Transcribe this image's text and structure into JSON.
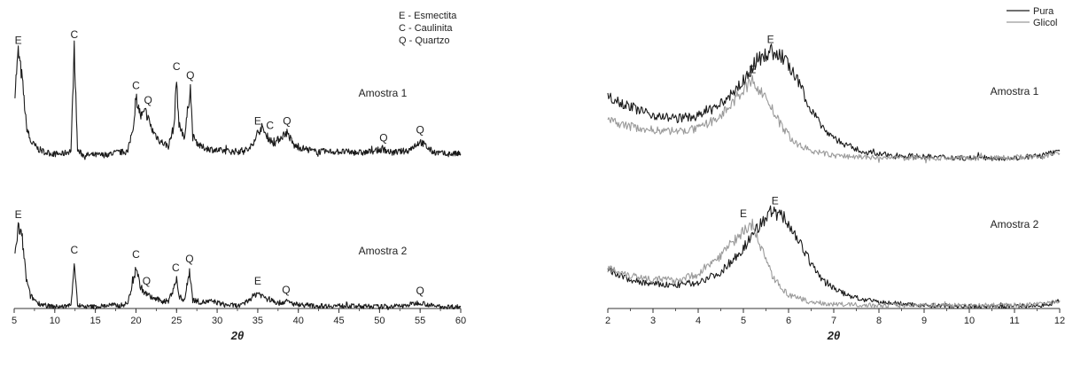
{
  "chart_data": [
    {
      "type": "line",
      "xlabel": "2θ",
      "xlim": [
        5,
        60
      ],
      "xticks": [
        "5",
        "10",
        "15",
        "20",
        "25",
        "30",
        "35",
        "40",
        "45",
        "50",
        "55",
        "60"
      ],
      "legend_notes": [
        "E - Esmectita",
        "C - Caulinita",
        "Q - Quartzo"
      ],
      "series": [
        {
          "name": "Amostra 1",
          "points": [
            [
              5.1,
              0.6
            ],
            [
              5.5,
              0.95
            ],
            [
              6.0,
              0.7
            ],
            [
              6.5,
              0.3
            ],
            [
              7.0,
              0.16
            ],
            [
              8.0,
              0.09
            ],
            [
              9.0,
              0.06
            ],
            [
              10.0,
              0.05
            ],
            [
              11.0,
              0.05
            ],
            [
              12.0,
              0.08
            ],
            [
              12.4,
              1.0
            ],
            [
              12.8,
              0.08
            ],
            [
              13.5,
              0.04
            ],
            [
              15.0,
              0.04
            ],
            [
              16.0,
              0.04
            ],
            [
              17.5,
              0.06
            ],
            [
              19.0,
              0.07
            ],
            [
              19.8,
              0.35
            ],
            [
              20.0,
              0.55
            ],
            [
              20.6,
              0.38
            ],
            [
              21.2,
              0.42
            ],
            [
              22.0,
              0.26
            ],
            [
              23.0,
              0.16
            ],
            [
              24.0,
              0.12
            ],
            [
              24.7,
              0.3
            ],
            [
              25.0,
              0.72
            ],
            [
              25.3,
              0.3
            ],
            [
              26.0,
              0.2
            ],
            [
              26.7,
              0.64
            ],
            [
              27.0,
              0.2
            ],
            [
              28.0,
              0.11
            ],
            [
              30.0,
              0.08
            ],
            [
              32.0,
              0.07
            ],
            [
              34.0,
              0.09
            ],
            [
              35.0,
              0.24
            ],
            [
              35.5,
              0.28
            ],
            [
              36.2,
              0.2
            ],
            [
              37.0,
              0.14
            ],
            [
              38.2,
              0.22
            ],
            [
              38.6,
              0.24
            ],
            [
              39.5,
              0.12
            ],
            [
              42.0,
              0.07
            ],
            [
              45.0,
              0.07
            ],
            [
              48.0,
              0.06
            ],
            [
              50.5,
              0.09
            ],
            [
              51.5,
              0.06
            ],
            [
              53.5,
              0.08
            ],
            [
              55.0,
              0.16
            ],
            [
              56.5,
              0.07
            ],
            [
              58.0,
              0.05
            ],
            [
              60.0,
              0.05
            ]
          ],
          "peak_labels": [
            {
              "text": "E",
              "x": 5.5
            },
            {
              "text": "C",
              "x": 12.4
            },
            {
              "text": "C",
              "x": 20.0
            },
            {
              "text": "Q",
              "x": 21.5
            },
            {
              "text": "C",
              "x": 25.0
            },
            {
              "text": "Q",
              "x": 26.7
            },
            {
              "text": "E",
              "x": 35.0
            },
            {
              "text": "C",
              "x": 36.5
            },
            {
              "text": "Q",
              "x": 38.6
            },
            {
              "text": "Q",
              "x": 50.5
            },
            {
              "text": "Q",
              "x": 55.0
            }
          ]
        },
        {
          "name": "Amostra 2",
          "points": [
            [
              5.1,
              0.6
            ],
            [
              5.5,
              0.95
            ],
            [
              6.0,
              0.8
            ],
            [
              6.5,
              0.35
            ],
            [
              7.0,
              0.16
            ],
            [
              8.0,
              0.08
            ],
            [
              9.0,
              0.05
            ],
            [
              10.0,
              0.04
            ],
            [
              11.0,
              0.04
            ],
            [
              12.0,
              0.06
            ],
            [
              12.4,
              0.55
            ],
            [
              12.8,
              0.06
            ],
            [
              13.5,
              0.04
            ],
            [
              15.0,
              0.04
            ],
            [
              17.0,
              0.06
            ],
            [
              18.0,
              0.05
            ],
            [
              19.0,
              0.08
            ],
            [
              19.8,
              0.4
            ],
            [
              20.0,
              0.5
            ],
            [
              20.5,
              0.28
            ],
            [
              21.0,
              0.2
            ],
            [
              22.0,
              0.14
            ],
            [
              23.0,
              0.11
            ],
            [
              24.0,
              0.1
            ],
            [
              24.8,
              0.3
            ],
            [
              25.0,
              0.35
            ],
            [
              25.3,
              0.15
            ],
            [
              26.0,
              0.12
            ],
            [
              26.6,
              0.45
            ],
            [
              27.0,
              0.12
            ],
            [
              28.0,
              0.09
            ],
            [
              29.5,
              0.1
            ],
            [
              31.0,
              0.06
            ],
            [
              33.0,
              0.05
            ],
            [
              35.0,
              0.2
            ],
            [
              35.6,
              0.16
            ],
            [
              36.5,
              0.12
            ],
            [
              37.5,
              0.08
            ],
            [
              38.5,
              0.1
            ],
            [
              39.5,
              0.07
            ],
            [
              42.0,
              0.05
            ],
            [
              46.0,
              0.05
            ],
            [
              50.0,
              0.04
            ],
            [
              53.0,
              0.05
            ],
            [
              54.5,
              0.08
            ],
            [
              55.0,
              0.09
            ],
            [
              56.5,
              0.05
            ],
            [
              58.0,
              0.04
            ],
            [
              60.0,
              0.04
            ]
          ],
          "peak_labels": [
            {
              "text": "E",
              "x": 5.5
            },
            {
              "text": "C",
              "x": 12.4
            },
            {
              "text": "C",
              "x": 20.0
            },
            {
              "text": "Q",
              "x": 21.3
            },
            {
              "text": "C",
              "x": 24.9
            },
            {
              "text": "Q",
              "x": 26.6
            },
            {
              "text": "E",
              "x": 35.0
            },
            {
              "text": "Q",
              "x": 38.5
            },
            {
              "text": "Q",
              "x": 55.0
            }
          ]
        }
      ]
    },
    {
      "type": "line",
      "xlabel": "2θ",
      "xlim": [
        2,
        12
      ],
      "xticks": [
        "2",
        "3",
        "4",
        "5",
        "6",
        "7",
        "8",
        "9",
        "10",
        "11",
        "12"
      ],
      "legend": [
        "Pura",
        "Glicol"
      ],
      "colors": {
        "Pura": "#1a1a1a",
        "Glicol": "#9a9a9a"
      },
      "panels": [
        {
          "sample": "Amostra 1",
          "series": [
            {
              "name": "Pura",
              "points": [
                [
                  2.0,
                  0.6
                ],
                [
                  2.5,
                  0.5
                ],
                [
                  3.0,
                  0.43
                ],
                [
                  3.5,
                  0.4
                ],
                [
                  4.0,
                  0.42
                ],
                [
                  4.5,
                  0.52
                ],
                [
                  5.0,
                  0.72
                ],
                [
                  5.3,
                  0.9
                ],
                [
                  5.6,
                  0.98
                ],
                [
                  5.9,
                  0.92
                ],
                [
                  6.2,
                  0.72
                ],
                [
                  6.5,
                  0.48
                ],
                [
                  6.8,
                  0.3
                ],
                [
                  7.2,
                  0.18
                ],
                [
                  7.6,
                  0.12
                ],
                [
                  8.0,
                  0.09
                ],
                [
                  9.0,
                  0.07
                ],
                [
                  10.0,
                  0.06
                ],
                [
                  11.0,
                  0.06
                ],
                [
                  11.6,
                  0.08
                ],
                [
                  12.0,
                  0.12
                ]
              ]
            },
            {
              "name": "Glicol",
              "points": [
                [
                  2.0,
                  0.38
                ],
                [
                  2.5,
                  0.33
                ],
                [
                  3.0,
                  0.3
                ],
                [
                  3.5,
                  0.29
                ],
                [
                  4.0,
                  0.31
                ],
                [
                  4.5,
                  0.42
                ],
                [
                  4.9,
                  0.6
                ],
                [
                  5.2,
                  0.72
                ],
                [
                  5.5,
                  0.58
                ],
                [
                  5.8,
                  0.36
                ],
                [
                  6.1,
                  0.2
                ],
                [
                  6.5,
                  0.12
                ],
                [
                  7.0,
                  0.08
                ],
                [
                  8.0,
                  0.06
                ],
                [
                  9.0,
                  0.06
                ],
                [
                  10.0,
                  0.06
                ],
                [
                  11.0,
                  0.06
                ],
                [
                  11.6,
                  0.07
                ],
                [
                  12.0,
                  0.1
                ]
              ]
            }
          ],
          "peak_labels": [
            {
              "series": "Pura",
              "text": "E",
              "x": 5.6
            },
            {
              "series": "Glicol",
              "text": "E",
              "x": 5.2
            }
          ]
        },
        {
          "sample": "Amostra 2",
          "series": [
            {
              "name": "Pura",
              "points": [
                [
                  2.0,
                  0.4
                ],
                [
                  2.5,
                  0.3
                ],
                [
                  3.0,
                  0.26
                ],
                [
                  3.5,
                  0.25
                ],
                [
                  4.0,
                  0.28
                ],
                [
                  4.5,
                  0.38
                ],
                [
                  5.0,
                  0.62
                ],
                [
                  5.3,
                  0.82
                ],
                [
                  5.6,
                  0.98
                ],
                [
                  5.9,
                  0.93
                ],
                [
                  6.2,
                  0.72
                ],
                [
                  6.5,
                  0.46
                ],
                [
                  6.8,
                  0.28
                ],
                [
                  7.2,
                  0.17
                ],
                [
                  7.6,
                  0.11
                ],
                [
                  8.0,
                  0.08
                ],
                [
                  9.0,
                  0.05
                ],
                [
                  10.0,
                  0.04
                ],
                [
                  11.0,
                  0.04
                ],
                [
                  11.6,
                  0.05
                ],
                [
                  12.0,
                  0.09
                ]
              ]
            },
            {
              "name": "Glicol",
              "points": [
                [
                  2.0,
                  0.43
                ],
                [
                  2.5,
                  0.35
                ],
                [
                  3.0,
                  0.31
                ],
                [
                  3.5,
                  0.3
                ],
                [
                  4.0,
                  0.36
                ],
                [
                  4.5,
                  0.55
                ],
                [
                  4.9,
                  0.75
                ],
                [
                  5.2,
                  0.85
                ],
                [
                  5.4,
                  0.62
                ],
                [
                  5.7,
                  0.3
                ],
                [
                  6.0,
                  0.15
                ],
                [
                  6.5,
                  0.08
                ],
                [
                  7.0,
                  0.06
                ],
                [
                  8.0,
                  0.05
                ],
                [
                  9.0,
                  0.05
                ],
                [
                  10.0,
                  0.05
                ],
                [
                  11.0,
                  0.05
                ],
                [
                  11.6,
                  0.06
                ],
                [
                  12.0,
                  0.1
                ]
              ]
            }
          ],
          "peak_labels": [
            {
              "series": "Pura",
              "text": "E",
              "x": 5.7
            },
            {
              "series": "Glicol",
              "text": "E",
              "x": 5.0
            }
          ]
        }
      ]
    }
  ]
}
